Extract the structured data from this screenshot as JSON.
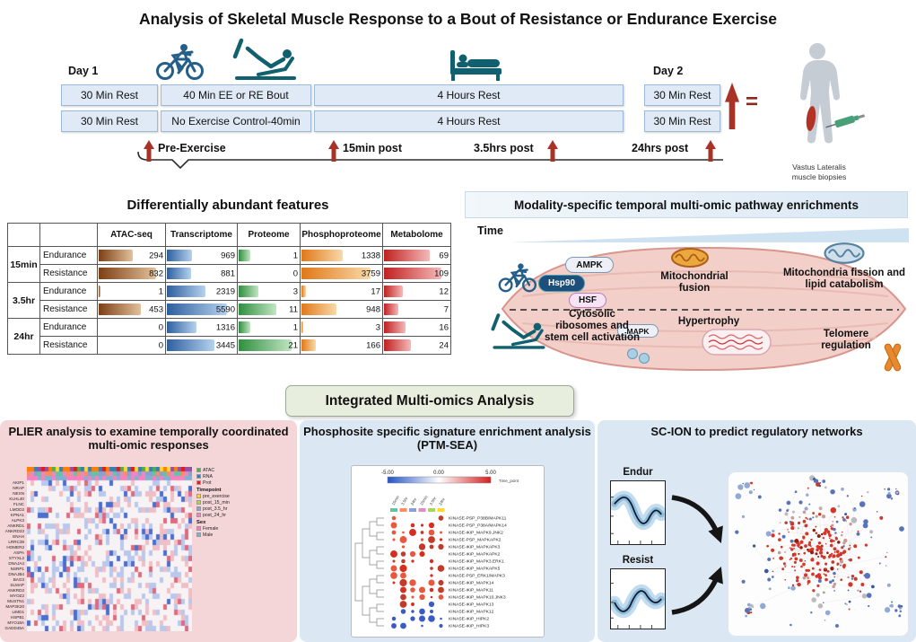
{
  "header": {
    "title": "Analysis of Skeletal Muscle Response to a Bout of Resistance or Endurance Exercise"
  },
  "timeline": {
    "day1": "Day 1",
    "day2": "Day 2",
    "equals": "=",
    "row1": [
      "30 Min Rest",
      "40 Min EE or RE Bout",
      "4 Hours Rest",
      "30 Min Rest"
    ],
    "row2": [
      "30 Min Rest",
      "No Exercise Control-40min",
      "4 Hours Rest",
      "30 Min Rest"
    ],
    "timepoints": [
      "Pre-Exercise",
      "15min post",
      "3.5hrs post",
      "24hrs post"
    ],
    "biopsy_caption_line1": "Vastus Lateralis",
    "biopsy_caption_line2": "muscle biopsies"
  },
  "features_table": {
    "title": "Differentially abundant features",
    "columns": [
      "ATAC-seq",
      "Transcriptome",
      "Proteome",
      "Phosphoproteome",
      "Metabolome"
    ],
    "bar_colors_dark": [
      "#7d3f14",
      "#2e5f9e",
      "#2f8f3f",
      "#e07818",
      "#c02020"
    ],
    "bar_colors_light": [
      "#e3c19b",
      "#b5d2ee",
      "#c2e5c3",
      "#f9d9a9",
      "#f5b9b9"
    ],
    "rows": [
      {
        "time": "15min",
        "condition": "Endurance",
        "values": [
          294,
          969,
          1,
          1338,
          69
        ]
      },
      {
        "time": "15min",
        "condition": "Resistance",
        "values": [
          832,
          881,
          0,
          3759,
          109
        ]
      },
      {
        "time": "3.5hr",
        "condition": "Endurance",
        "values": [
          1,
          2319,
          3,
          17,
          12
        ]
      },
      {
        "time": "3.5hr",
        "condition": "Resistance",
        "values": [
          453,
          5590,
          11,
          948,
          7
        ]
      },
      {
        "time": "24hr",
        "condition": "Endurance",
        "values": [
          0,
          1316,
          1,
          3,
          16
        ]
      },
      {
        "time": "24hr",
        "condition": "Resistance",
        "values": [
          0,
          3445,
          21,
          166,
          24
        ]
      }
    ]
  },
  "pathways": {
    "title": "Modality-specific temporal multi-omic pathway enrichments",
    "time_label": "Time",
    "badges": {
      "ampk": "AMPK",
      "hsp90": "Hsp90",
      "hsf": "HSF",
      "mapk": "MAPK"
    },
    "labels": {
      "mito_fusion": "Mitochondrial fusion",
      "mito_fission": "Mitochondria fission and lipid catabolism",
      "cytosolic": "Cytosolic ribosomes and stem cell activation",
      "hypertrophy": "Hypertrophy",
      "telomere": "Telomere regulation"
    }
  },
  "integrated": {
    "label": "Integrated Multi-omics Analysis"
  },
  "plier": {
    "title": "PLIER analysis to examine temporally coordinated multi-omic responses",
    "gene_labels": [
      "AKIP1",
      "NRAP",
      "NEXN",
      "KLHL40",
      "FLNC",
      "LMOD2",
      "KPNA1",
      "ALPK3",
      "ANKRD1",
      "ANKRD23",
      "ENAH",
      "LRRC39",
      "HOMER2",
      "ASPA",
      "STYXL2",
      "DNAJA4",
      "NSRP1",
      "DNAJB4",
      "BAG3",
      "SLMAP",
      "ANKRD2",
      "MYOZ2",
      "MUSTN1",
      "MAP3K20",
      "LIMD1",
      "HSPB1",
      "MYO18A",
      "GADD45A"
    ],
    "legend": {
      "assays": [
        "ATAC",
        "RNA",
        "Prot"
      ],
      "timepoint_title": "Timepoint",
      "timepoints": [
        "pre_exercise",
        "post_15_min",
        "post_3.5_hr",
        "post_24_hr"
      ],
      "sex_title": "Sex",
      "sexes": [
        "Female",
        "Male"
      ]
    }
  },
  "ptmsea": {
    "title": "Phosphosite specific signature enrichment analysis (PTM-SEA)",
    "scale_labels": [
      "-5.00",
      "0.00",
      "5.00"
    ],
    "legend_label": "Time_point",
    "columns": [
      "15min",
      "3.5hr",
      "24hr",
      "15min",
      "3.5hr",
      "24hr"
    ],
    "row_labels": [
      "KINASE-PSP_P38B/MAPK11",
      "KINASE-PSP_P38A/MAPK14",
      "KINASE-iKiP_MAPK9.JNK2",
      "KINASE-PSP_MAPKAPK2",
      "KINASE-iKiP_MAPKAPK3",
      "KINASE-iKiP_MAPKAPK2",
      "KINASE-iKiP_MAPK3.ERK1",
      "KINASE-iKiP_MAPKAPK5",
      "KINASE-PSP_ERK1/MAPK3",
      "KINASE-iKiP_MAPK14",
      "KINASE-iKiP_MAPK11",
      "KINASE-iKiP_MAPK10.JNK3",
      "KINASE-iKiP_MAPK13",
      "KINASE-iKiP_MAPK12",
      "KINASE-iKiP_HIPK2",
      "KINASE-iKiP_HIPK3"
    ]
  },
  "scion": {
    "title": "SC-ION to predict regulatory networks",
    "chart1_label": "Endur",
    "chart2_label": "Resist"
  }
}
